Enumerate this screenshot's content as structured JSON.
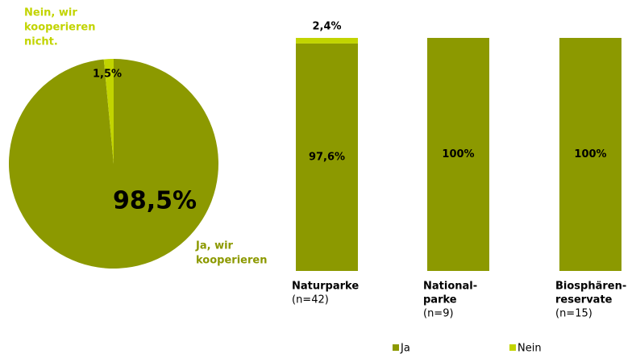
{
  "chart_data": [
    {
      "type": "pie",
      "categories": [
        [
          "Ja, wir",
          "kooperieren"
        ],
        [
          "Nein, wir",
          "kooperieren",
          "nicht."
        ]
      ],
      "values": [
        98.5,
        1.5
      ],
      "value_labels": [
        "98,5%",
        "1,5%"
      ],
      "colors": [
        "#8c9900",
        "#c2d400"
      ]
    },
    {
      "type": "stacked_bar",
      "categories": [
        [
          "Naturparke"
        ],
        [
          "National-",
          "parke"
        ],
        [
          "Biosphären-",
          "reservate"
        ]
      ],
      "sample_sizes": [
        "(n=42)",
        "(n=9)",
        "(n=15)"
      ],
      "series": [
        {
          "name": "Ja",
          "color": "#8c9900",
          "values": [
            97.6,
            100,
            100
          ],
          "value_labels": [
            "97,6%",
            "100%",
            "100%"
          ]
        },
        {
          "name": "Nein",
          "color": "#c2d400",
          "values": [
            2.4,
            0,
            0
          ],
          "value_labels": [
            "2,4%",
            null,
            null
          ]
        }
      ],
      "legend": "bottom"
    }
  ]
}
